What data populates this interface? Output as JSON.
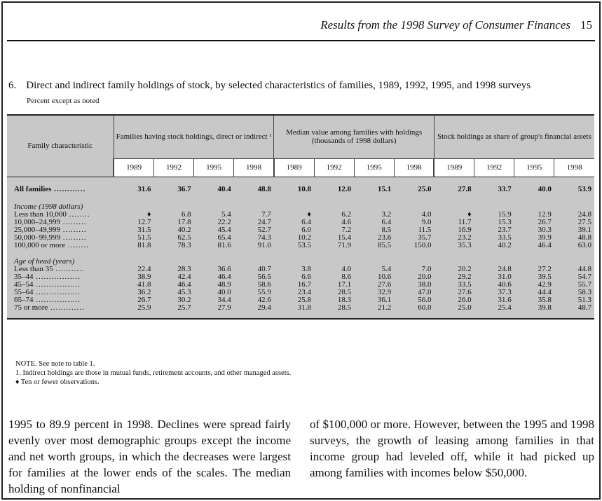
{
  "running_head": {
    "title": "Results from the 1998 Survey of Consumer Finances",
    "page": "15"
  },
  "table": {
    "number": "6.",
    "title": "Direct and indirect family holdings of stock, by selected characteristics of families, 1989, 1992, 1995, and 1998 surveys",
    "subtitle": "Percent except as noted",
    "family_header": "Family characteristic",
    "groups": [
      "Families having stock holdings, direct or indirect ¹",
      "Median value among families with holdings (thousands of 1998 dollars)",
      "Stock holdings as share of group's financial assets"
    ],
    "years": [
      "1989",
      "1992",
      "1995",
      "1998"
    ],
    "all_families": {
      "label": "All families",
      "values": [
        "31.6",
        "36.7",
        "40.4",
        "48.8",
        "10.8",
        "12.0",
        "15.1",
        "25.0",
        "27.8",
        "33.7",
        "40.0",
        "53.9"
      ]
    },
    "sections": [
      {
        "heading": "Income (1998 dollars)",
        "rows": [
          {
            "label": "Less than 10,000",
            "values": [
              "♦",
              "6.8",
              "5.4",
              "7.7",
              "♦",
              "6.2",
              "3.2",
              "4.0",
              "♦",
              "15.9",
              "12.9",
              "24.8"
            ]
          },
          {
            "label": "10,000–24,999",
            "values": [
              "12.7",
              "17.8",
              "22.2",
              "24.7",
              "6.4",
              "4.6",
              "6.4",
              "9.0",
              "11.7",
              "15.3",
              "26.7",
              "27.5"
            ]
          },
          {
            "label": "25,000–49,999",
            "values": [
              "31.5",
              "40.2",
              "45.4",
              "52.7",
              "6.0",
              "7.2",
              "8.5",
              "11.5",
              "16.9",
              "23.7",
              "30.3",
              "39.1"
            ]
          },
          {
            "label": "50,000–99,999",
            "values": [
              "51.5",
              "62.5",
              "65.4",
              "74.3",
              "10.2",
              "15.4",
              "23.6",
              "35.7",
              "23.2",
              "33.5",
              "39.9",
              "48.8"
            ]
          },
          {
            "label": "100,000 or more",
            "values": [
              "81.8",
              "78.3",
              "81.6",
              "91.0",
              "53.5",
              "71.9",
              "85.5",
              "150.0",
              "35.3",
              "40.2",
              "46.4",
              "63.0"
            ]
          }
        ]
      },
      {
        "heading": "Age of head (years)",
        "rows": [
          {
            "label": "Less than 35",
            "values": [
              "22.4",
              "28.3",
              "36.6",
              "40.7",
              "3.8",
              "4.0",
              "5.4",
              "7.0",
              "20.2",
              "24.8",
              "27.2",
              "44.8"
            ]
          },
          {
            "label": "35–44",
            "values": [
              "38.9",
              "42.4",
              "46.4",
              "56.5",
              "6.6",
              "8.6",
              "10.6",
              "20.0",
              "29.2",
              "31.0",
              "39.5",
              "54.7"
            ]
          },
          {
            "label": "45–54",
            "values": [
              "41.8",
              "46.4",
              "48.9",
              "58.6",
              "16.7",
              "17.1",
              "27.6",
              "38.0",
              "33.5",
              "40.6",
              "42.9",
              "55.7"
            ]
          },
          {
            "label": "55–64",
            "values": [
              "36.2",
              "45.3",
              "40.0",
              "55.9",
              "23.4",
              "28.5",
              "32.9",
              "47.0",
              "27.6",
              "37.3",
              "44.4",
              "58.3"
            ]
          },
          {
            "label": "65–74",
            "values": [
              "26.7",
              "30.2",
              "34.4",
              "42.6",
              "25.8",
              "18.3",
              "36.1",
              "56.0",
              "26.0",
              "31.6",
              "35.8",
              "51.3"
            ]
          },
          {
            "label": "75 or more",
            "values": [
              "25.9",
              "25.7",
              "27.9",
              "29.4",
              "31.8",
              "28.5",
              "21.2",
              "60.0",
              "25.0",
              "25.4",
              "39.8",
              "48.7"
            ]
          }
        ]
      }
    ],
    "notes": [
      "NOTE. See note to table 1.",
      "1. Indirect holdings are those in mutual funds, retirement accounts, and other managed assets.",
      "♦ Ten or fewer observations."
    ]
  },
  "body_text": {
    "left": "1995 to 89.9 percent in 1998. Declines were spread fairly evenly over most demographic groups except the income and net worth groups, in which the decreases were largest for families at the lower ends of the scales. The median holding of nonfinancial",
    "right": "of $100,000 or more. However, between the 1995 and 1998 surveys, the growth of leasing among families in that income group had leveled off, while it had picked up among families with incomes below $50,000."
  }
}
